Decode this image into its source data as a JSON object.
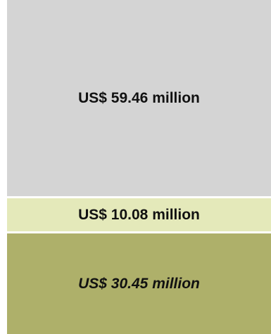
{
  "chart_data": {
    "type": "bar",
    "orientation": "stacked-vertical",
    "categories": [
      ""
    ],
    "series": [
      {
        "values": [
          59.46
        ],
        "label": "US$ 59.46 million",
        "color": "#d4d4d4",
        "label_style": "bold"
      },
      {
        "values": [
          10.08
        ],
        "label": "US$ 10.08 million",
        "color": "#e4e9ba",
        "label_style": "bold"
      },
      {
        "values": [
          30.45
        ],
        "label": "US$ 30.45 million",
        "color": "#aeb06a",
        "label_style": "bold-italic"
      }
    ],
    "title": "",
    "xlabel": "",
    "ylabel": "",
    "grid": false,
    "legend": "none"
  }
}
